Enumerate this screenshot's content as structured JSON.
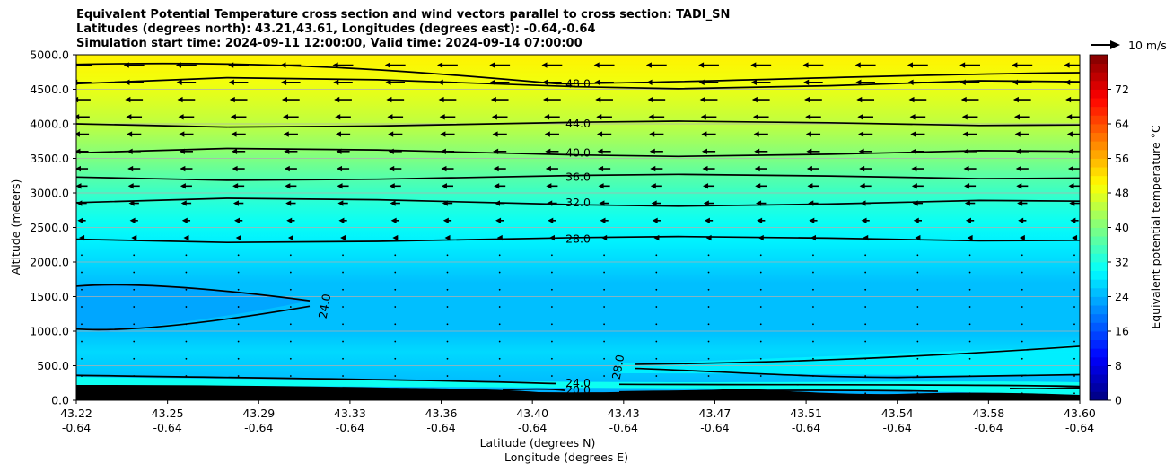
{
  "title": {
    "line1": "Equivalent Potential Temperature cross section and wind vectors parallel to cross section: TADI_SN",
    "line2": "Latitudes (degrees north): 43.21,43.61, Longitudes (degrees east): -0.64,-0.64",
    "line3": "Simulation start time: 2024-09-11 12:00:00, Valid time: 2024-09-14 07:00:00"
  },
  "chart_data": {
    "type": "heatmap",
    "title": "Equivalent Potential Temperature cross section and wind vectors parallel to cross section: TADI_SN",
    "xlabel_lat": "Latitude (degrees N)",
    "xlabel_lon": "Longitude (degrees E)",
    "ylabel": "Altitude (meters)",
    "xlim": [
      43.22,
      43.6
    ],
    "ylim": [
      0,
      5000
    ],
    "x_ticks": [
      {
        "lat": "43.22",
        "lon": "-0.64"
      },
      {
        "lat": "43.25",
        "lon": "-0.64"
      },
      {
        "lat": "43.29",
        "lon": "-0.64"
      },
      {
        "lat": "43.33",
        "lon": "-0.64"
      },
      {
        "lat": "43.36",
        "lon": "-0.64"
      },
      {
        "lat": "43.40",
        "lon": "-0.64"
      },
      {
        "lat": "43.43",
        "lon": "-0.64"
      },
      {
        "lat": "43.47",
        "lon": "-0.64"
      },
      {
        "lat": "43.51",
        "lon": "-0.64"
      },
      {
        "lat": "43.54",
        "lon": "-0.64"
      },
      {
        "lat": "43.58",
        "lon": "-0.64"
      },
      {
        "lat": "43.60",
        "lon": "-0.64"
      }
    ],
    "y_ticks": [
      "0.0",
      "500.0",
      "1000.0",
      "1500.0",
      "2000.0",
      "2500.0",
      "3000.0",
      "3500.0",
      "4000.0",
      "4500.0",
      "5000.0"
    ],
    "grid": true,
    "colorbar": {
      "label": "Equivalent potential temperature $^\\circ$C",
      "label_text": "Equivalent potential temperature °C",
      "ticks": [
        "0",
        "8",
        "16",
        "24",
        "32",
        "40",
        "48",
        "56",
        "64",
        "72"
      ],
      "range": [
        0,
        80
      ],
      "colormap": "jet"
    },
    "contour_labels": [
      {
        "value": "48.0",
        "altitude": 4580
      },
      {
        "value": "44.0",
        "altitude": 4000
      },
      {
        "value": "40.0",
        "altitude": 3580
      },
      {
        "value": "36.0",
        "altitude": 3230
      },
      {
        "value": "32.0",
        "altitude": 2860
      },
      {
        "value": "28.0",
        "altitude": 2330
      },
      {
        "value": "24.0",
        "altitude": 1360
      },
      {
        "value": "28.0",
        "altitude": 480
      },
      {
        "value": "24.0",
        "altitude": 250
      },
      {
        "value": "20.0",
        "altitude": 140
      }
    ],
    "theta_e_profile": [
      {
        "altitude": 0,
        "value": 22
      },
      {
        "altitude": 300,
        "value": 25
      },
      {
        "altitude": 700,
        "value": 26
      },
      {
        "altitude": 1000,
        "value": 25
      },
      {
        "altitude": 1300,
        "value": 24
      },
      {
        "altitude": 1700,
        "value": 25
      },
      {
        "altitude": 2000,
        "value": 26
      },
      {
        "altitude": 2300,
        "value": 28
      },
      {
        "altitude": 2600,
        "value": 30
      },
      {
        "altitude": 2850,
        "value": 32
      },
      {
        "altitude": 3250,
        "value": 36
      },
      {
        "altitude": 3600,
        "value": 40
      },
      {
        "altitude": 4000,
        "value": 44
      },
      {
        "altitude": 4600,
        "value": 48
      },
      {
        "altitude": 5000,
        "value": 50
      }
    ],
    "wind": {
      "reference": "10 m/s",
      "direction": "westward (toward south) aloft",
      "speed_profile": [
        {
          "altitude": 100,
          "value": 0.5
        },
        {
          "altitude": 500,
          "value": 1
        },
        {
          "altitude": 1000,
          "value": 0.5
        },
        {
          "altitude": 1500,
          "value": 0.3
        },
        {
          "altitude": 2000,
          "value": 0.5
        },
        {
          "altitude": 2250,
          "value": 2
        },
        {
          "altitude": 2500,
          "value": 4
        },
        {
          "altitude": 3000,
          "value": 6
        },
        {
          "altitude": 3500,
          "value": 7
        },
        {
          "altitude": 4000,
          "value": 8
        },
        {
          "altitude": 4500,
          "value": 10
        },
        {
          "altitude": 4900,
          "value": 11
        }
      ]
    },
    "terrain": "black"
  }
}
